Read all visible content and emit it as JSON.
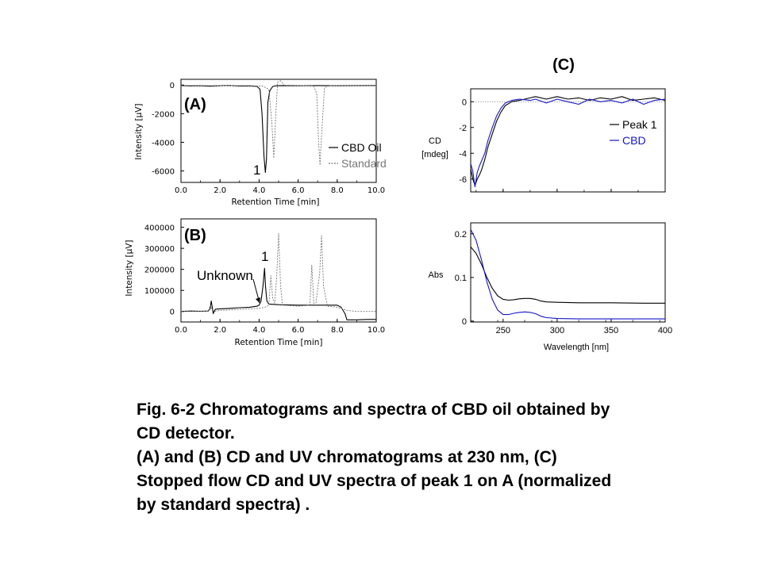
{
  "chart_data": [
    {
      "id": "A",
      "type": "line",
      "panel_label": "(A)",
      "xlabel": "Retention  Time [min]",
      "ylabel": "Intensity  [µV]",
      "xlim": [
        0,
        10
      ],
      "ylim": [
        -6800,
        400
      ],
      "xticks": [
        "0.0",
        "2.0",
        "4.0",
        "6.0",
        "8.0",
        "10.0"
      ],
      "yticks": [
        {
          "value": 0,
          "label": "0"
        },
        {
          "value": -2000,
          "label": "-2000"
        },
        {
          "value": -4000,
          "label": "-4000"
        },
        {
          "value": -6000,
          "label": "-6000"
        }
      ],
      "legend_position": "bottom-right",
      "annotations": [
        {
          "text": "1",
          "x": 3.9,
          "y": -6100
        }
      ],
      "series": [
        {
          "name": "CBD Oil",
          "color": "#000000",
          "dash": "solid",
          "x": [
            0,
            0.5,
            1.0,
            1.5,
            2.0,
            2.5,
            3.0,
            3.5,
            3.9,
            4.05,
            4.15,
            4.25,
            4.32,
            4.38,
            4.45,
            4.55,
            4.7,
            4.9,
            5.2,
            6.0,
            7.0,
            8.0,
            9.0,
            10.0
          ],
          "y": [
            -40,
            -60,
            -50,
            -80,
            -50,
            -30,
            -70,
            -60,
            -100,
            -300,
            -2000,
            -5000,
            -6100,
            -5200,
            -1200,
            -400,
            -100,
            -50,
            -40,
            -50,
            -40,
            -50,
            -40,
            -30
          ]
        },
        {
          "name": "Standard",
          "color": "#777777",
          "dash": "dashed",
          "x": [
            0,
            1.0,
            2.0,
            3.0,
            3.8,
            4.2,
            4.5,
            4.65,
            4.75,
            4.85,
            4.95,
            5.1,
            5.3,
            6.0,
            6.8,
            6.95,
            7.05,
            7.12,
            7.2,
            7.35,
            7.6,
            8.5,
            10.0
          ],
          "y": [
            -30,
            -40,
            -50,
            -40,
            -60,
            -80,
            -300,
            -2500,
            -5100,
            -2200,
            200,
            300,
            -20,
            -30,
            -60,
            -600,
            -4000,
            -5600,
            -3500,
            -200,
            -40,
            -30,
            -30
          ]
        }
      ]
    },
    {
      "id": "B",
      "type": "line",
      "panel_label": "(B)",
      "xlabel": "Retention  Time [min]",
      "ylabel": "Intensity  [µV]",
      "xlim": [
        0,
        10
      ],
      "ylim": [
        -50000,
        440000
      ],
      "xticks": [
        "0.0",
        "2.0",
        "4.0",
        "6.0",
        "8.0",
        "10.0"
      ],
      "yticks": [
        {
          "value": 0,
          "label": "0"
        },
        {
          "value": 100000,
          "label": "100000"
        },
        {
          "value": 200000,
          "label": "200000"
        },
        {
          "value": 300000,
          "label": "300000"
        },
        {
          "value": 400000,
          "label": "400000"
        }
      ],
      "annotations": [
        {
          "text": "1",
          "x": 4.1,
          "y": 240000
        },
        {
          "text": "Unknown",
          "x": 0.8,
          "y": 140000
        }
      ],
      "arrow": {
        "from": [
          3.8,
          100000
        ],
        "to": [
          4.0,
          45000
        ]
      },
      "series": [
        {
          "name": "CBD Oil",
          "color": "#000000",
          "dash": "solid",
          "x": [
            0,
            0.5,
            1.0,
            1.4,
            1.5,
            1.55,
            1.6,
            1.65,
            1.75,
            1.9,
            2.5,
            3.0,
            3.5,
            3.9,
            4.0,
            4.1,
            4.2,
            4.28,
            4.33,
            4.4,
            4.5,
            5.0,
            6.0,
            7.0,
            8.0,
            8.2,
            8.4,
            8.5,
            9.0,
            9.5,
            10.0
          ],
          "y": [
            0,
            2000,
            1000,
            2000,
            15000,
            50000,
            20000,
            -10000,
            10000,
            12000,
            15000,
            18000,
            20000,
            25000,
            30000,
            50000,
            120000,
            205000,
            120000,
            50000,
            35000,
            32000,
            30000,
            30000,
            30000,
            20000,
            -10000,
            -40000,
            -40000,
            -38000,
            -38000
          ]
        },
        {
          "name": "Standard",
          "color": "#777777",
          "dash": "dashed",
          "x": [
            0,
            1.0,
            1.4,
            1.5,
            1.6,
            1.7,
            2.0,
            3.0,
            4.0,
            4.3,
            4.5,
            4.6,
            4.7,
            4.8,
            4.9,
            5.0,
            5.1,
            5.2,
            6.0,
            6.6,
            6.7,
            6.8,
            6.9,
            7.1,
            7.2,
            7.3,
            7.5,
            8.0,
            8.5,
            9.0,
            10.0
          ],
          "y": [
            0,
            0,
            2000,
            30000,
            10000,
            0,
            5000,
            10000,
            15000,
            20000,
            30000,
            170000,
            60000,
            40000,
            160000,
            370000,
            120000,
            30000,
            25000,
            30000,
            220000,
            40000,
            30000,
            180000,
            360000,
            120000,
            25000,
            20000,
            5000,
            0,
            0
          ]
        }
      ]
    },
    {
      "id": "C-CD",
      "type": "line",
      "panel_label": "(C)",
      "xlabel": "",
      "ylabel": "CD [mdeg]",
      "xlim": [
        220,
        400
      ],
      "ylim": [
        -7,
        1
      ],
      "reference_line": 0,
      "xticks": [],
      "yticks": [
        {
          "value": 0,
          "label": "0"
        },
        {
          "value": -2,
          "label": "-2"
        },
        {
          "value": -4,
          "label": "-4"
        },
        {
          "value": -6,
          "label": "-6"
        }
      ],
      "legend_position": "top-right",
      "series": [
        {
          "name": "Peak 1",
          "color": "#000000",
          "x": [
            220,
            222,
            224,
            226,
            228,
            230,
            233,
            236,
            240,
            244,
            248,
            252,
            258,
            265,
            275,
            280,
            290,
            300,
            310,
            320,
            330,
            340,
            350,
            360,
            370,
            380,
            390,
            400
          ],
          "y": [
            -5.2,
            -6.0,
            -6.5,
            -6.0,
            -5.7,
            -5.3,
            -4.5,
            -3.5,
            -2.5,
            -1.5,
            -0.8,
            -0.3,
            0.0,
            0.1,
            0.3,
            0.4,
            0.2,
            0.4,
            0.2,
            0.3,
            0.1,
            0.3,
            0.2,
            0.4,
            0.1,
            0.2,
            0.3,
            0.1
          ]
        },
        {
          "name": "CBD",
          "color": "#1515c8",
          "x": [
            220,
            222,
            224,
            226,
            228,
            230,
            233,
            236,
            240,
            244,
            248,
            252,
            258,
            265,
            275,
            280,
            290,
            300,
            310,
            320,
            330,
            340,
            350,
            360,
            370,
            380,
            390,
            400
          ],
          "y": [
            -4.8,
            -5.4,
            -6.6,
            -5.5,
            -5.0,
            -4.6,
            -4.0,
            -3.0,
            -2.0,
            -1.1,
            -0.5,
            -0.1,
            0.1,
            0.2,
            0.1,
            0.2,
            -0.1,
            0.2,
            0.0,
            -0.2,
            0.2,
            0.0,
            0.1,
            -0.1,
            0.2,
            -0.2,
            0.1,
            0.2
          ]
        }
      ]
    },
    {
      "id": "C-UV",
      "type": "line",
      "xlabel": "Wavelength  [nm]",
      "ylabel": "Abs",
      "xlim": [
        220,
        400
      ],
      "ylim": [
        -0.002,
        0.225
      ],
      "xticks": [
        "250",
        "300",
        "350",
        "400"
      ],
      "yticks": [
        {
          "value": 0,
          "label": "0"
        },
        {
          "value": 0.1,
          "label": "0.1"
        },
        {
          "value": 0.2,
          "label": "0.2"
        }
      ],
      "series": [
        {
          "name": "Peak 1",
          "color": "#000000",
          "x": [
            220,
            225,
            230,
            235,
            240,
            245,
            250,
            255,
            260,
            265,
            270,
            275,
            280,
            285,
            290,
            300,
            320,
            350,
            380,
            400
          ],
          "y": [
            0.17,
            0.155,
            0.13,
            0.1,
            0.075,
            0.058,
            0.05,
            0.048,
            0.049,
            0.051,
            0.052,
            0.052,
            0.05,
            0.046,
            0.044,
            0.043,
            0.042,
            0.042,
            0.041,
            0.041
          ]
        },
        {
          "name": "CBD",
          "color": "#1515c8",
          "x": [
            220,
            225,
            230,
            235,
            240,
            245,
            250,
            255,
            260,
            265,
            270,
            275,
            280,
            285,
            290,
            300,
            320,
            350,
            380,
            400
          ],
          "y": [
            0.21,
            0.185,
            0.14,
            0.09,
            0.05,
            0.025,
            0.015,
            0.015,
            0.018,
            0.02,
            0.021,
            0.02,
            0.017,
            0.011,
            0.008,
            0.006,
            0.005,
            0.005,
            0.005,
            0.005
          ]
        }
      ]
    }
  ],
  "caption": {
    "lines": [
      "Fig. 6-2  Chromatograms and spectra of CBD oil obtained by",
      "CD detector.",
      "(A) and (B) CD and UV chromatograms at 230 nm, (C)",
      "Stopped flow CD and UV spectra of  peak 1 on A (normalized",
      "by standard spectra) ."
    ]
  }
}
